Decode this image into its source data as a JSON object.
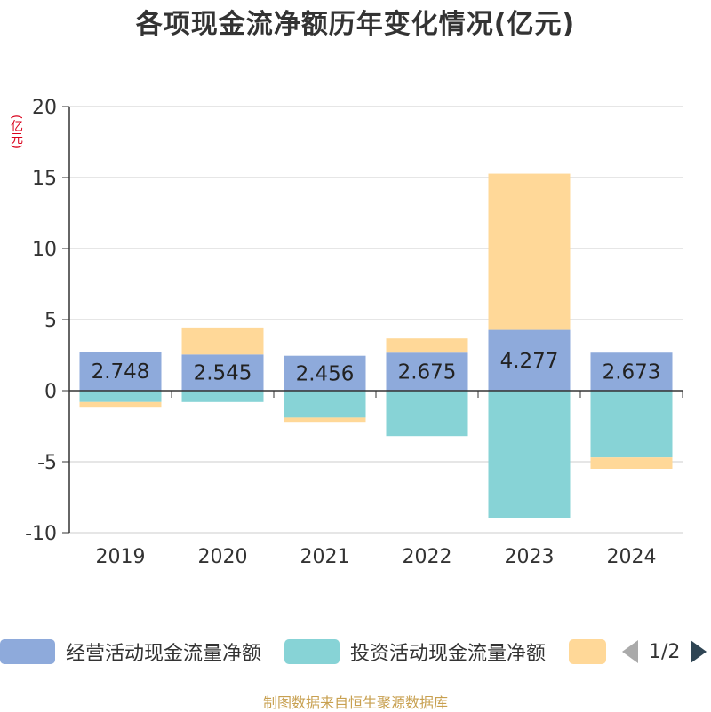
{
  "chart_data": {
    "type": "bar",
    "stacked": true,
    "title": "各项现金流净额历年变化情况(亿元)",
    "ylabel": "(亿元)",
    "ylim": [
      -10,
      20
    ],
    "yticks": [
      20,
      15,
      10,
      5,
      0,
      -5,
      -10
    ],
    "categories": [
      "2019",
      "2020",
      "2021",
      "2022",
      "2023",
      "2024"
    ],
    "series": [
      {
        "name": "经营活动现金流量净额",
        "color": "#8eaadb",
        "values": [
          2.748,
          2.545,
          2.456,
          2.675,
          4.277,
          2.673
        ],
        "labels": [
          "2.748",
          "2.545",
          "2.456",
          "2.675",
          "4.277",
          "2.673"
        ]
      },
      {
        "name": "投资活动现金流量净额",
        "color": "#87d3d6",
        "values": [
          -0.8,
          -0.8,
          -1.9,
          -3.2,
          -9.0,
          -4.7
        ]
      },
      {
        "name": "",
        "color": "#ffd898",
        "values": [
          -0.4,
          1.9,
          -0.3,
          1.0,
          11.0,
          -0.8
        ]
      }
    ],
    "legend_position": "bottom",
    "grid": true
  },
  "legend": {
    "pager": "1/2",
    "prev_icon": "triangle-left-icon",
    "next_icon": "triangle-right-icon"
  },
  "source": "制图数据来自恒生聚源数据库"
}
